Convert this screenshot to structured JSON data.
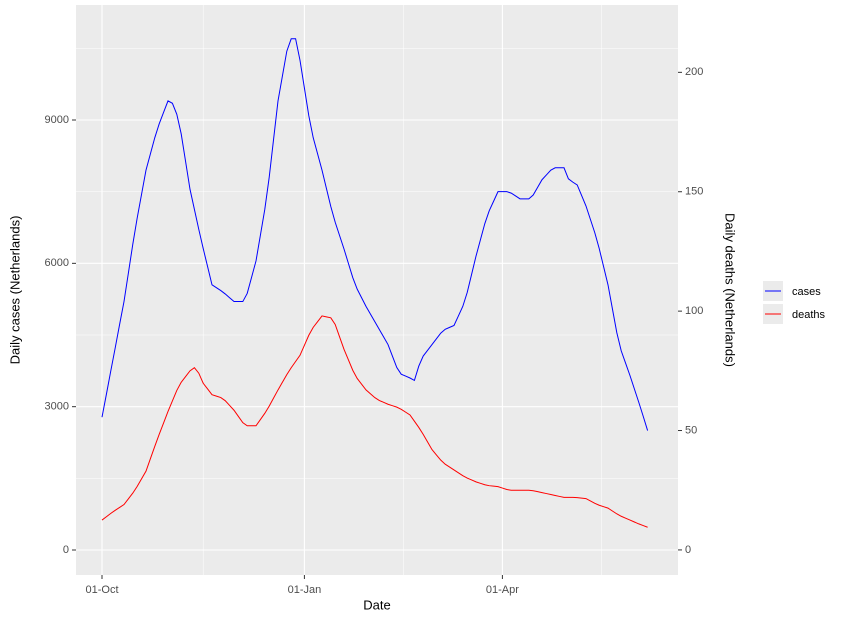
{
  "chart_data": {
    "type": "line",
    "x_label": "Date",
    "y_label": "Daily cases (Netherlands)",
    "y2_label": "Daily deaths (Netherlands)",
    "categories": [
      "01-Oct",
      "03-Oct",
      "05-Oct",
      "07-Oct",
      "09-Oct",
      "11-Oct",
      "13-Oct",
      "15-Oct",
      "17-Oct",
      "19-Oct",
      "21-Oct",
      "23-Oct",
      "25-Oct",
      "27-Oct",
      "29-Oct",
      "31-Oct",
      "02-Nov",
      "04-Nov",
      "06-Nov",
      "08-Nov",
      "10-Nov",
      "12-Nov",
      "14-Nov",
      "16-Nov",
      "18-Nov",
      "20-Nov",
      "22-Nov",
      "24-Nov",
      "26-Nov",
      "28-Nov",
      "30-Nov",
      "02-Dec",
      "04-Dec",
      "06-Dec",
      "08-Dec",
      "10-Dec",
      "12-Dec",
      "14-Dec",
      "16-Dec",
      "18-Dec",
      "20-Dec",
      "22-Dec",
      "24-Dec",
      "26-Dec",
      "28-Dec",
      "30-Dec",
      "01-Jan",
      "03-Jan",
      "05-Jan",
      "07-Jan",
      "09-Jan",
      "11-Jan",
      "13-Jan",
      "15-Jan",
      "17-Jan",
      "19-Jan",
      "21-Jan",
      "23-Jan",
      "25-Jan",
      "27-Jan",
      "29-Jan",
      "31-Jan",
      "02-Feb",
      "04-Feb",
      "06-Feb",
      "08-Feb",
      "10-Feb",
      "12-Feb",
      "14-Feb",
      "16-Feb",
      "18-Feb",
      "20-Feb",
      "22-Feb",
      "24-Feb",
      "26-Feb",
      "28-Feb",
      "02-Mar",
      "04-Mar",
      "06-Mar",
      "08-Mar",
      "10-Mar",
      "12-Mar",
      "14-Mar",
      "16-Mar",
      "18-Mar",
      "20-Mar",
      "22-Mar",
      "24-Mar",
      "26-Mar",
      "28-Mar",
      "30-Mar",
      "01-Apr",
      "03-Apr",
      "05-Apr",
      "07-Apr",
      "09-Apr",
      "11-Apr",
      "13-Apr",
      "15-Apr",
      "17-Apr",
      "19-Apr",
      "21-Apr",
      "23-Apr",
      "25-Apr",
      "27-Apr",
      "29-Apr",
      "01-May",
      "03-May",
      "05-May",
      "07-May",
      "09-May",
      "11-May",
      "13-May",
      "15-May",
      "17-May",
      "19-May",
      "21-May",
      "23-May",
      "25-May",
      "27-May",
      "29-May",
      "31-May",
      "02-Jun",
      "04-Jun",
      "06-Jun"
    ],
    "series": [
      {
        "name": "cases",
        "color": "#0000ff",
        "values": [
          2780,
          3260,
          3750,
          4230,
          4720,
          5200,
          5800,
          6400,
          6950,
          7450,
          7950,
          8290,
          8630,
          8920,
          9160,
          9400,
          9350,
          9120,
          8710,
          8130,
          7550,
          7130,
          6710,
          6310,
          5930,
          5550,
          5490,
          5430,
          5360,
          5280,
          5200,
          5200,
          5200,
          5370,
          5710,
          6050,
          6590,
          7130,
          7800,
          8600,
          9400,
          9920,
          10440,
          10700,
          10700,
          10250,
          9670,
          9090,
          8630,
          8290,
          7950,
          7570,
          7190,
          6860,
          6580,
          6300,
          6000,
          5700,
          5460,
          5280,
          5100,
          4940,
          4780,
          4620,
          4460,
          4300,
          4060,
          3820,
          3680,
          3640,
          3600,
          3550,
          3850,
          4060,
          4180,
          4300,
          4420,
          4540,
          4620,
          4660,
          4700,
          4900,
          5100,
          5390,
          5770,
          6150,
          6490,
          6830,
          7100,
          7300,
          7500,
          7500,
          7500,
          7470,
          7410,
          7350,
          7350,
          7350,
          7430,
          7590,
          7750,
          7850,
          7950,
          8000,
          8000,
          8000,
          7770,
          7700,
          7640,
          7420,
          7200,
          6920,
          6640,
          6310,
          5930,
          5550,
          5050,
          4550,
          4170,
          3910,
          3650,
          3370,
          3090,
          2800,
          2500
        ]
      },
      {
        "name": "deaths",
        "color": "#ff0000",
        "axis": "y2",
        "values": [
          12.5,
          13.9,
          15.3,
          16.6,
          17.8,
          19,
          21.4,
          23.8,
          26.6,
          29.8,
          33,
          38.2,
          43.4,
          48.4,
          53.2,
          58,
          62.4,
          66.8,
          70.2,
          72.6,
          75,
          76.3,
          74,
          69.8,
          67.4,
          65,
          64.4,
          63.8,
          62.5,
          60.5,
          58.5,
          55.9,
          53.3,
          52,
          52,
          52,
          54.6,
          57.2,
          60.2,
          63.6,
          67,
          70.2,
          73.4,
          76.3,
          78.9,
          81.5,
          85.7,
          89.9,
          93.2,
          95.6,
          98,
          97.6,
          97.2,
          94.4,
          89.2,
          84,
          79.6,
          75.2,
          71.8,
          69.4,
          67,
          65.4,
          63.8,
          62.6,
          61.8,
          61,
          60.4,
          59.8,
          58.9,
          57.7,
          56.5,
          53.9,
          51.3,
          48.4,
          45.2,
          42,
          39.8,
          37.6,
          35.9,
          34.7,
          33.5,
          32.3,
          31.1,
          30.1,
          29.3,
          28.5,
          27.9,
          27.3,
          26.9,
          26.7,
          26.5,
          25.9,
          25.3,
          25,
          25,
          25,
          25,
          25,
          24.8,
          24.4,
          24,
          23.6,
          23.2,
          22.8,
          22.4,
          22,
          22,
          22,
          21.9,
          21.7,
          21.5,
          20.5,
          19.5,
          18.7,
          18.1,
          17.5,
          16.3,
          15.1,
          14.1,
          13.3,
          12.5,
          11.7,
          10.9,
          10.2,
          9.5
        ]
      }
    ],
    "xticks": [
      "01-Oct",
      "01-Jan",
      "01-Apr"
    ],
    "ylim": [
      -523,
      11407
    ],
    "yticks": [
      0,
      3000,
      6000,
      9000
    ],
    "y2lim": [
      -10.5,
      228.2
    ],
    "y2ticks": [
      0,
      50,
      100,
      150,
      200
    ],
    "grid": true,
    "legend": "right"
  }
}
